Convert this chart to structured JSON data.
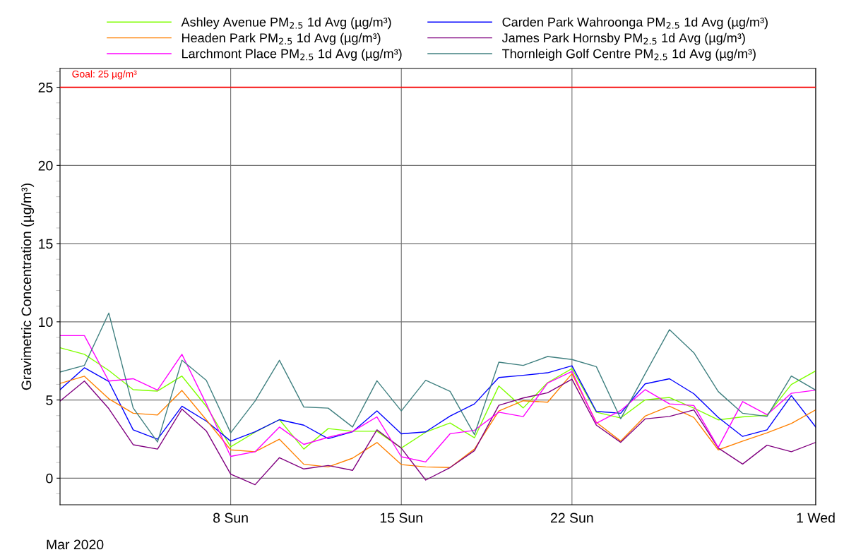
{
  "chart_data": {
    "type": "line",
    "ylabel": "Gravimetric Concentration (µg/m³)",
    "x": [
      "2020-03-01",
      "2020-03-02",
      "2020-03-03",
      "2020-03-04",
      "2020-03-05",
      "2020-03-06",
      "2020-03-07",
      "2020-03-08",
      "2020-03-09",
      "2020-03-10",
      "2020-03-11",
      "2020-03-12",
      "2020-03-13",
      "2020-03-14",
      "2020-03-15",
      "2020-03-16",
      "2020-03-17",
      "2020-03-18",
      "2020-03-19",
      "2020-03-20",
      "2020-03-21",
      "2020-03-22",
      "2020-03-23",
      "2020-03-24",
      "2020-03-25",
      "2020-03-26",
      "2020-03-27",
      "2020-03-28",
      "2020-03-29",
      "2020-03-30",
      "2020-03-31",
      "2020-04-01"
    ],
    "series": [
      {
        "name": "Ashley Avenue PM$_{2.5}$ 1d Avg (µg/m³)",
        "color": "#80ff00",
        "values": [
          8.34,
          7.92,
          6.89,
          5.66,
          5.57,
          6.53,
          4.6,
          2.01,
          2.94,
          3.74,
          1.86,
          3.17,
          3.0,
          3.0,
          1.93,
          2.94,
          3.53,
          2.58,
          5.9,
          4.49,
          6.11,
          7.01,
          4.22,
          3.85,
          5.01,
          5.16,
          4.48,
          3.73,
          3.92,
          4.03,
          5.99,
          6.86
        ]
      },
      {
        "name": "Carden Park Wahroonga PM$_{2.5}$ 1d Avg (µg/m³)",
        "color": "#0000ff",
        "values": [
          5.66,
          7.06,
          6.18,
          3.09,
          2.49,
          4.6,
          3.65,
          2.37,
          2.97,
          3.74,
          3.39,
          2.53,
          2.97,
          4.3,
          2.84,
          2.96,
          3.97,
          4.75,
          6.44,
          6.58,
          6.74,
          7.19,
          4.27,
          4.15,
          6.03,
          6.36,
          5.4,
          3.89,
          2.67,
          3.09,
          5.28,
          3.27
        ]
      },
      {
        "name": "Headen Park PM$_{2.5}$ 1d Avg (µg/m³)",
        "color": "#ff8000",
        "values": [
          6.06,
          6.52,
          5.08,
          4.15,
          4.04,
          5.61,
          3.73,
          1.81,
          1.69,
          2.49,
          0.89,
          0.72,
          1.28,
          2.28,
          0.87,
          0.72,
          0.68,
          1.86,
          4.3,
          4.95,
          4.86,
          6.68,
          3.57,
          2.37,
          3.97,
          4.6,
          3.88,
          1.81,
          2.37,
          2.9,
          3.5,
          4.37
        ]
      },
      {
        "name": "James Park Hornsby PM$_{2.5}$ 1d Avg (µg/m³)",
        "color": "#800080",
        "values": [
          4.93,
          6.21,
          4.45,
          2.14,
          1.86,
          4.42,
          3.02,
          0.26,
          -0.42,
          1.31,
          0.59,
          0.81,
          0.5,
          3.09,
          1.92,
          -0.12,
          0.68,
          1.76,
          4.66,
          5.13,
          5.46,
          6.33,
          3.39,
          2.29,
          3.79,
          3.95,
          4.37,
          1.93,
          0.9,
          2.11,
          1.69,
          2.29
        ]
      },
      {
        "name": "Larchmont Place PM$_{2.5}$ 1d Avg (µg/m³)",
        "color": "#ff00ff",
        "values": [
          9.12,
          9.12,
          6.21,
          6.36,
          5.63,
          7.92,
          4.75,
          1.39,
          1.69,
          3.27,
          2.16,
          2.61,
          2.99,
          3.92,
          1.37,
          1.04,
          2.84,
          3.06,
          4.22,
          3.94,
          6.08,
          6.83,
          3.51,
          4.33,
          5.66,
          4.75,
          4.65,
          1.96,
          4.9,
          4.06,
          5.43,
          5.63
        ]
      },
      {
        "name": "Thornleigh Golf Centre PM$_{2.5}$ 1d Avg (µg/m³)",
        "color": "#408080",
        "values": [
          6.79,
          7.21,
          10.56,
          4.49,
          2.31,
          7.54,
          6.26,
          2.9,
          4.93,
          7.54,
          4.55,
          4.48,
          3.27,
          6.23,
          4.3,
          6.26,
          5.55,
          2.79,
          7.42,
          7.21,
          7.78,
          7.59,
          7.13,
          3.8,
          6.67,
          9.5,
          8.02,
          5.54,
          4.15,
          3.95,
          6.53,
          5.63
        ]
      }
    ],
    "xlim": [
      "2020-03-01",
      "2020-04-01"
    ],
    "xticks": [
      {
        "value": "2020-03-08",
        "label": "8 Sun"
      },
      {
        "value": "2020-03-15",
        "label": "15 Sun"
      },
      {
        "value": "2020-03-22",
        "label": "22 Sun"
      },
      {
        "value": "2020-04-01",
        "label": "1 Wed"
      }
    ],
    "ylim": [
      -1.7,
      26.2
    ],
    "yticks": [
      0,
      5,
      10,
      15,
      20,
      25
    ],
    "ref_lines": [
      {
        "axis": "y",
        "value": 25,
        "label": "Goal: 25 µg/m³",
        "color": "#ff0000"
      }
    ],
    "annotations": [
      "Mar 2020"
    ],
    "grid": true,
    "legend": "top",
    "marker": "none",
    "line_style": "solid"
  }
}
